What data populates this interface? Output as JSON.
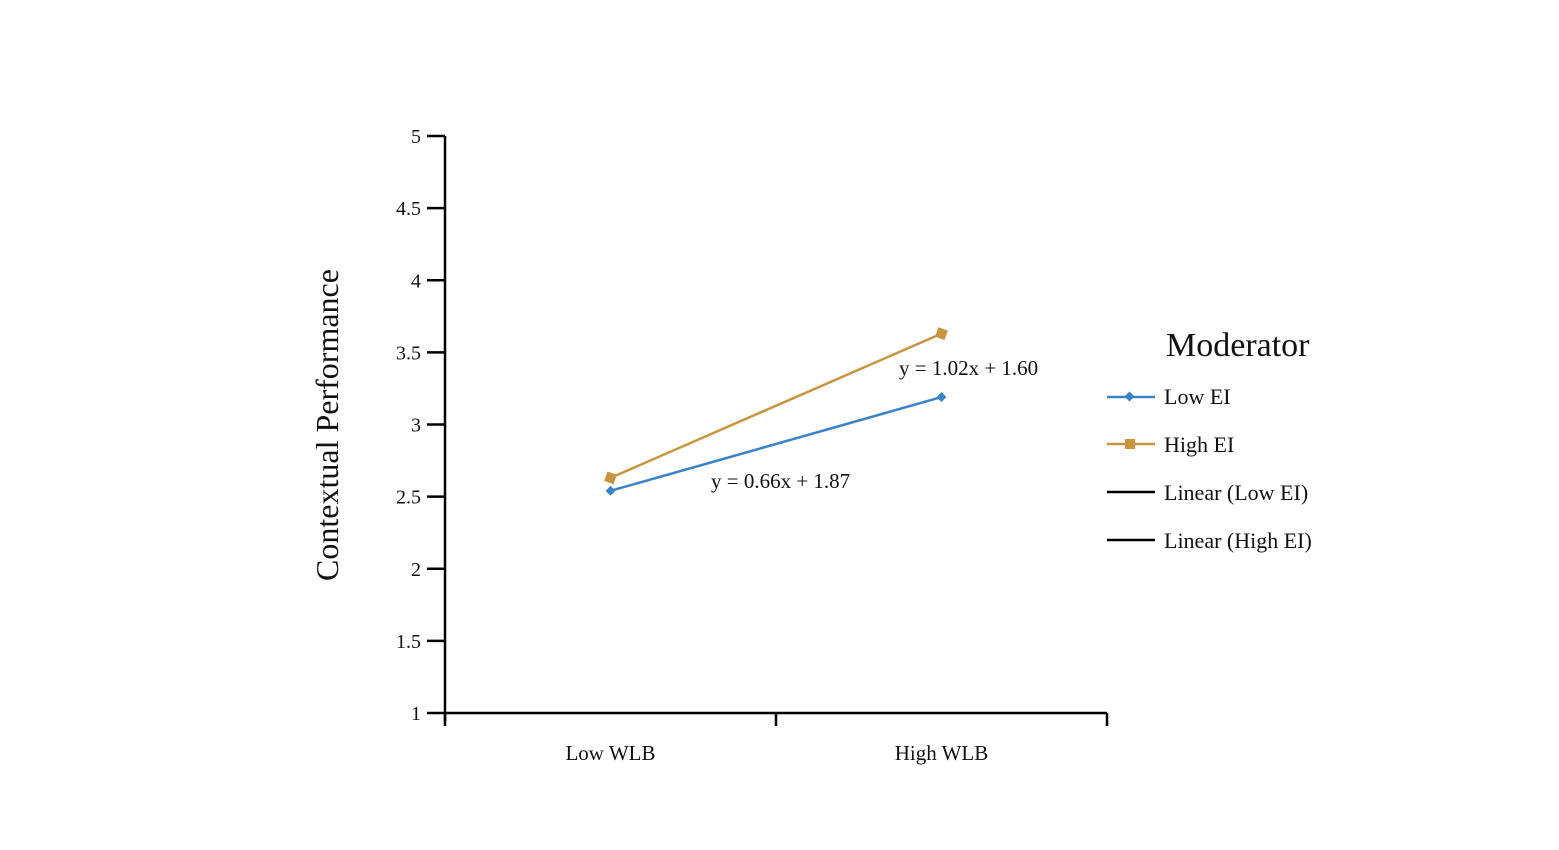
{
  "chart_data": {
    "type": "line",
    "title": "",
    "xlabel": "",
    "ylabel": "Contextual Performance",
    "ylim": [
      1,
      5
    ],
    "yticks": [
      "1",
      "1.5",
      "2",
      "2.5",
      "3",
      "3.5",
      "4",
      "4.5",
      "5"
    ],
    "categories": [
      "Low WLB",
      "High WLB"
    ],
    "grid": false,
    "legend": {
      "title": "Moderator",
      "placement": "right",
      "entries": [
        "Low EI",
        "High EI",
        "Linear (Low EI)",
        "Linear (High EI)"
      ]
    },
    "series": [
      {
        "name": "Low EI",
        "values": [
          2.54,
          3.19
        ],
        "color": "#3a82c8",
        "marker": "diamond"
      },
      {
        "name": "High EI",
        "values": [
          2.63,
          3.63
        ],
        "color": "#c8953f",
        "marker": "square"
      }
    ],
    "trendlines": [
      {
        "name": "Linear (Low EI)",
        "equation": "y = 0.66x + 1.87",
        "color": "#000000"
      },
      {
        "name": "Linear (High EI)",
        "equation": "y = 1.02x + 1.60",
        "color": "#000000"
      }
    ]
  }
}
